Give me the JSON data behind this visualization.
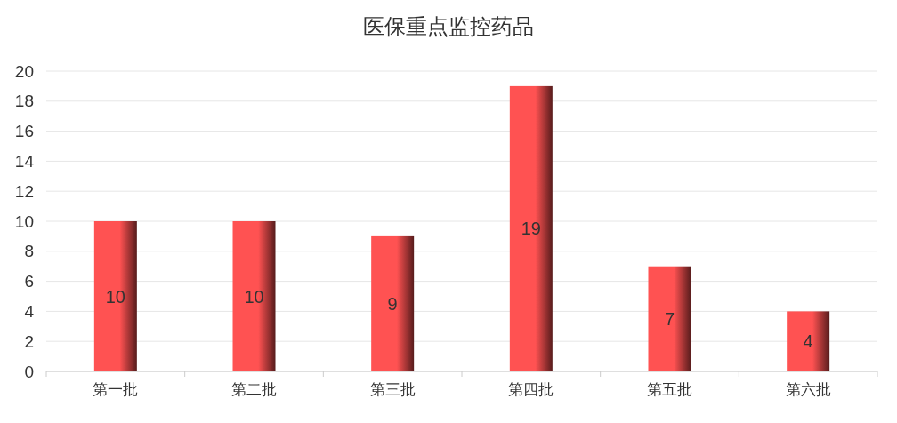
{
  "chart_data": {
    "type": "bar",
    "title": "医保重点监控药品",
    "categories": [
      "第一批",
      "第二批",
      "第三批",
      "第四批",
      "第五批",
      "第六批"
    ],
    "values": [
      10,
      10,
      9,
      19,
      7,
      4
    ],
    "color": "#ff5252",
    "ylim": [
      0,
      20
    ],
    "yticks": [
      0,
      2,
      4,
      6,
      8,
      10,
      12,
      14,
      16,
      18,
      20
    ],
    "grid": "y",
    "data_labels": true
  }
}
